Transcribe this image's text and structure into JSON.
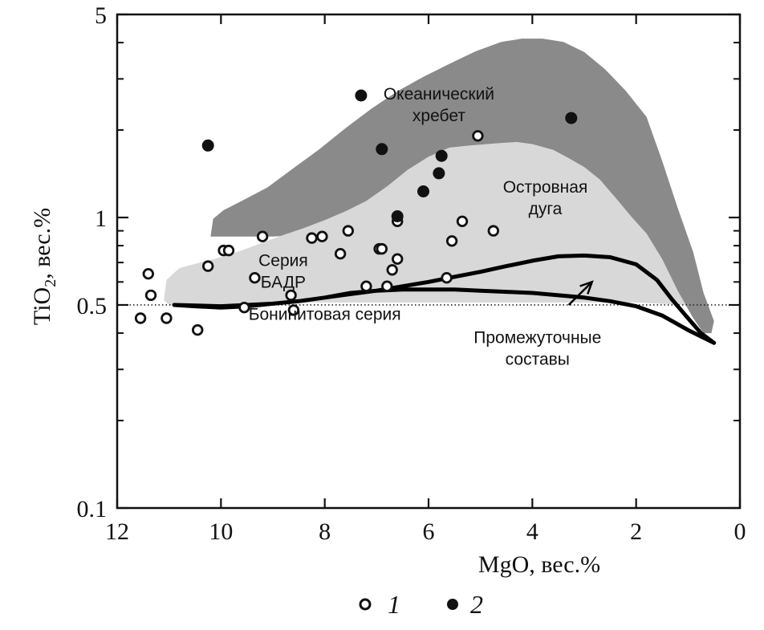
{
  "chart_data": {
    "type": "scatter",
    "x_scale": "linear",
    "y_scale": "log",
    "xlim": [
      12,
      0
    ],
    "ylim": [
      0.1,
      5
    ],
    "x_ticks": [
      12,
      10,
      8,
      6,
      4,
      2,
      0
    ],
    "y_ticks": [
      0.1,
      0.5,
      1,
      5
    ],
    "y_minor_ticks": [
      0.2,
      0.3,
      0.4,
      0.6,
      0.7,
      0.8,
      0.9,
      2,
      3,
      4
    ],
    "xlabel": "MgO, вес.%",
    "ylabel_main": "TiO",
    "ylabel_sub": "2",
    "ylabel_rest": ", вес.%",
    "reference_line": {
      "y": 0.5,
      "style": "dotted"
    },
    "regions": [
      {
        "name": "ocean-ridge",
        "label_lines": [
          "Океанический",
          "хребет"
        ],
        "label_pos": [
          5.8,
          2.55
        ],
        "color": "#8a8a8a",
        "polygon": [
          [
            10.2,
            0.86
          ],
          [
            10.15,
            0.99
          ],
          [
            9.95,
            1.06
          ],
          [
            9.6,
            1.14
          ],
          [
            9.1,
            1.27
          ],
          [
            8.6,
            1.48
          ],
          [
            8.1,
            1.72
          ],
          [
            7.6,
            2.03
          ],
          [
            7.1,
            2.37
          ],
          [
            6.6,
            2.72
          ],
          [
            6.1,
            3.05
          ],
          [
            5.6,
            3.38
          ],
          [
            5.1,
            3.73
          ],
          [
            4.6,
            4.02
          ],
          [
            4.2,
            4.13
          ],
          [
            3.8,
            4.13
          ],
          [
            3.4,
            4.02
          ],
          [
            3.0,
            3.71
          ],
          [
            2.6,
            3.24
          ],
          [
            2.2,
            2.73
          ],
          [
            1.8,
            2.22
          ],
          [
            1.5,
            1.57
          ],
          [
            1.2,
            1.08
          ],
          [
            0.9,
            0.76
          ],
          [
            0.7,
            0.55
          ],
          [
            0.5,
            0.44
          ],
          [
            0.55,
            0.4
          ],
          [
            0.7,
            0.4
          ],
          [
            0.9,
            0.45
          ],
          [
            1.2,
            0.56
          ],
          [
            1.5,
            0.72
          ],
          [
            1.8,
            0.88
          ],
          [
            2.1,
            1.01
          ],
          [
            2.4,
            1.17
          ],
          [
            2.7,
            1.35
          ],
          [
            3.0,
            1.49
          ],
          [
            3.3,
            1.6
          ],
          [
            3.6,
            1.71
          ],
          [
            4.0,
            1.78
          ],
          [
            4.5,
            1.77
          ],
          [
            5.0,
            1.72
          ],
          [
            5.5,
            1.58
          ],
          [
            6.0,
            1.35
          ],
          [
            6.5,
            1.14
          ],
          [
            7.0,
            1.01
          ],
          [
            7.5,
            0.93
          ],
          [
            8.0,
            0.89
          ],
          [
            8.5,
            0.87
          ],
          [
            9.0,
            0.86
          ],
          [
            9.5,
            0.86
          ]
        ]
      },
      {
        "name": "island-arc",
        "label_lines": [
          "Островная",
          "дуга"
        ],
        "label_pos": [
          3.75,
          1.22
        ],
        "color": "#d8d8d8",
        "polygon": [
          [
            11.1,
            0.52
          ],
          [
            11.05,
            0.61
          ],
          [
            10.8,
            0.67
          ],
          [
            10.4,
            0.7
          ],
          [
            10.0,
            0.73
          ],
          [
            9.6,
            0.77
          ],
          [
            9.2,
            0.82
          ],
          [
            8.8,
            0.87
          ],
          [
            8.4,
            0.92
          ],
          [
            8.0,
            0.98
          ],
          [
            7.6,
            1.05
          ],
          [
            7.2,
            1.14
          ],
          [
            6.8,
            1.28
          ],
          [
            6.4,
            1.46
          ],
          [
            6.0,
            1.62
          ],
          [
            5.6,
            1.74
          ],
          [
            5.2,
            1.77
          ],
          [
            4.7,
            1.8
          ],
          [
            4.3,
            1.82
          ],
          [
            4.0,
            1.79
          ],
          [
            3.6,
            1.71
          ],
          [
            3.3,
            1.6
          ],
          [
            3.0,
            1.49
          ],
          [
            2.7,
            1.35
          ],
          [
            2.4,
            1.17
          ],
          [
            2.1,
            1.01
          ],
          [
            1.8,
            0.88
          ],
          [
            1.5,
            0.72
          ],
          [
            1.2,
            0.56
          ],
          [
            1.05,
            0.5
          ],
          [
            2.0,
            0.51
          ],
          [
            3.0,
            0.51
          ],
          [
            4.0,
            0.51
          ],
          [
            5.0,
            0.51
          ],
          [
            6.0,
            0.51
          ],
          [
            7.0,
            0.51
          ],
          [
            8.0,
            0.51
          ],
          [
            9.0,
            0.51
          ],
          [
            10.0,
            0.5
          ],
          [
            11.0,
            0.5
          ]
        ]
      }
    ],
    "region_labels": [
      {
        "name": "badr-series",
        "lines": [
          "Серия",
          "БАДР"
        ],
        "pos": [
          8.8,
          0.68
        ]
      },
      {
        "name": "boninite-series",
        "lines": [
          "Бонинитовая серия"
        ],
        "pos": [
          8.0,
          0.445
        ]
      },
      {
        "name": "intermediate-compositions",
        "lines": [
          "Промежуточные",
          "составы"
        ],
        "pos": [
          3.9,
          0.37
        ]
      }
    ],
    "intermediate_outline": [
      [
        10.9,
        0.5
      ],
      [
        10.5,
        0.495
      ],
      [
        10.0,
        0.49
      ],
      [
        9.5,
        0.495
      ],
      [
        9.0,
        0.505
      ],
      [
        8.5,
        0.515
      ],
      [
        8.0,
        0.53
      ],
      [
        7.5,
        0.545
      ],
      [
        7.0,
        0.56
      ],
      [
        6.5,
        0.58
      ],
      [
        6.0,
        0.6
      ],
      [
        5.5,
        0.625
      ],
      [
        5.0,
        0.65
      ],
      [
        4.5,
        0.68
      ],
      [
        4.0,
        0.71
      ],
      [
        3.5,
        0.735
      ],
      [
        3.0,
        0.74
      ],
      [
        2.5,
        0.73
      ],
      [
        2.0,
        0.69
      ],
      [
        1.6,
        0.61
      ],
      [
        1.3,
        0.52
      ],
      [
        1.0,
        0.45
      ],
      [
        0.75,
        0.4
      ],
      [
        0.5,
        0.37
      ],
      [
        1.0,
        0.41
      ],
      [
        1.5,
        0.46
      ],
      [
        2.0,
        0.495
      ],
      [
        2.5,
        0.515
      ],
      [
        3.0,
        0.53
      ],
      [
        3.5,
        0.54
      ],
      [
        4.0,
        0.55
      ],
      [
        4.5,
        0.555
      ],
      [
        5.0,
        0.56
      ],
      [
        5.5,
        0.565
      ],
      [
        6.0,
        0.565
      ],
      [
        6.5,
        0.565
      ],
      [
        7.0,
        0.56
      ],
      [
        7.5,
        0.55
      ],
      [
        8.0,
        0.53
      ],
      [
        8.5,
        0.515
      ],
      [
        9.0,
        0.505
      ],
      [
        10.0,
        0.495
      ]
    ],
    "arrow": {
      "from": [
        3.3,
        0.5
      ],
      "to": [
        2.85,
        0.6
      ]
    },
    "series": [
      {
        "name": "1",
        "marker": "open-circle",
        "points": [
          [
            11.55,
            0.45
          ],
          [
            11.4,
            0.64
          ],
          [
            11.35,
            0.54
          ],
          [
            11.05,
            0.45
          ],
          [
            10.45,
            0.41
          ],
          [
            10.25,
            0.68
          ],
          [
            9.95,
            0.77
          ],
          [
            9.85,
            0.77
          ],
          [
            9.55,
            0.49
          ],
          [
            9.35,
            0.62
          ],
          [
            9.2,
            0.86
          ],
          [
            8.65,
            0.54
          ],
          [
            8.6,
            0.48
          ],
          [
            8.25,
            0.85
          ],
          [
            8.05,
            0.86
          ],
          [
            7.7,
            0.75
          ],
          [
            7.55,
            0.9
          ],
          [
            7.2,
            0.58
          ],
          [
            6.95,
            0.78
          ],
          [
            6.9,
            0.78
          ],
          [
            6.8,
            0.58
          ],
          [
            6.7,
            0.66
          ],
          [
            6.6,
            0.72
          ],
          [
            6.6,
            0.97
          ],
          [
            5.65,
            0.62
          ],
          [
            5.55,
            0.83
          ],
          [
            5.35,
            0.97
          ],
          [
            5.05,
            1.91
          ],
          [
            4.75,
            0.9
          ]
        ]
      },
      {
        "name": "2",
        "marker": "filled-circle",
        "points": [
          [
            10.25,
            1.77
          ],
          [
            7.3,
            2.63
          ],
          [
            6.9,
            1.72
          ],
          [
            6.6,
            1.01
          ],
          [
            6.1,
            1.23
          ],
          [
            5.75,
            1.63
          ],
          [
            5.8,
            1.42
          ],
          [
            3.25,
            2.2
          ]
        ]
      }
    ],
    "legend": [
      {
        "name": "1",
        "marker": "open-circle"
      },
      {
        "name": "2",
        "marker": "filled-circle"
      }
    ],
    "legend_position": "bottom-center"
  }
}
